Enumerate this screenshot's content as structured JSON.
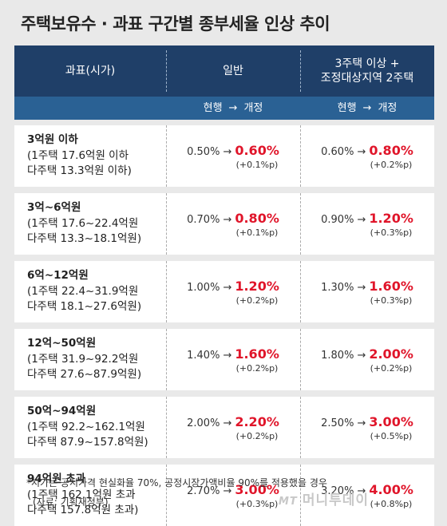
{
  "title": "주택보유수 · 과표 구간별 종부세율 인상 추이",
  "header": {
    "col1": "과표(시가)",
    "col2": "일반",
    "col3_line1": "3주택 이상 +",
    "col3_line2": "조정대상지역 2주택",
    "sub_current": "현행",
    "sub_arrow": "→",
    "sub_revised": "개정"
  },
  "rows": [
    {
      "name": "3억원 이하",
      "l2": "(1주택 17.6억원 이하",
      "l3": "다주택 13.3억원 이하)",
      "g_old": "0.50%",
      "g_new": "0.60%",
      "g_diff": "(+0.1%p)",
      "m_old": "0.60%",
      "m_new": "0.80%",
      "m_diff": "(+0.2%p)"
    },
    {
      "name": "3억~6억원",
      "l2": "(1주택 17.6~22.4억원",
      "l3": "다주택 13.3~18.1억원)",
      "g_old": "0.70%",
      "g_new": "0.80%",
      "g_diff": "(+0.1%p)",
      "m_old": "0.90%",
      "m_new": "1.20%",
      "m_diff": "(+0.3%p)"
    },
    {
      "name": "6억~12억원",
      "l2": "(1주택 22.4~31.9억원",
      "l3": "다주택 18.1~27.6억원)",
      "g_old": "1.00%",
      "g_new": "1.20%",
      "g_diff": "(+0.2%p)",
      "m_old": "1.30%",
      "m_new": "1.60%",
      "m_diff": "(+0.3%p)"
    },
    {
      "name": "12억~50억원",
      "l2": "(1주택 31.9~92.2억원",
      "l3": "다주택 27.6~87.9억원)",
      "g_old": "1.40%",
      "g_new": "1.60%",
      "g_diff": "(+0.2%p)",
      "m_old": "1.80%",
      "m_new": "2.00%",
      "m_diff": "(+0.2%p)"
    },
    {
      "name": "50억~94억원",
      "l2": "(1주택 92.2~162.1억원",
      "l3": "다주택 87.9~157.8억원)",
      "g_old": "2.00%",
      "g_new": "2.20%",
      "g_diff": "(+0.2%p)",
      "m_old": "2.50%",
      "m_new": "3.00%",
      "m_diff": "(+0.5%p)"
    },
    {
      "name": "94억원 초과",
      "l2": "(1주택 162.1억원 초과",
      "l3": "다주택 157.8억원 초과)",
      "g_old": "2.70%",
      "g_new": "3.00%",
      "g_diff": "(+0.3%p)",
      "m_old": "3.20%",
      "m_new": "4.00%",
      "m_diff": "(+0.8%p)"
    }
  ],
  "arrow": "→",
  "footnote": "*시가는 공시가격 현실화율 70%, 공정시장가액비율 90%를 적용했을 경우",
  "source": "(자료: 기획재정부)",
  "logo": {
    "mt": "MT",
    "name": "머니투데이"
  },
  "colors": {
    "header_dark": "#1f3f68",
    "header_light": "#2a6194",
    "highlight": "#e0152a"
  }
}
